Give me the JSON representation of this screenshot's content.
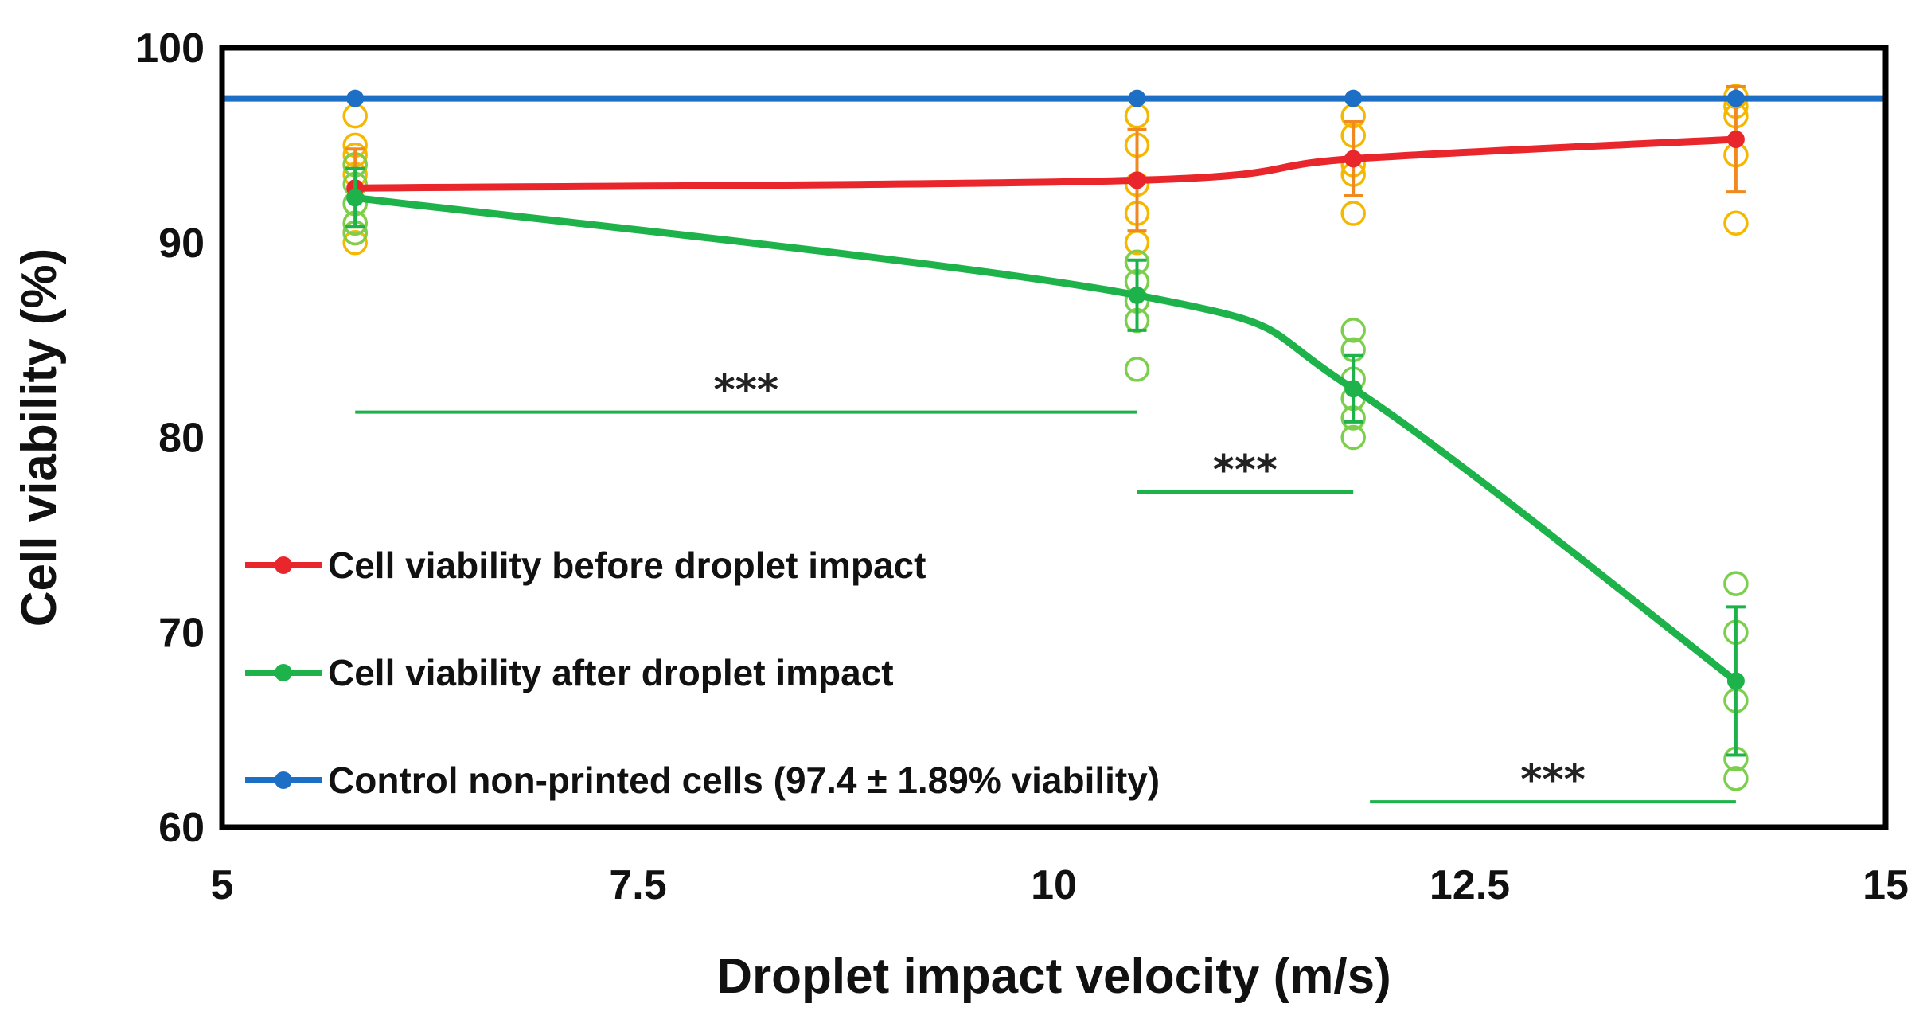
{
  "chart_data": {
    "type": "line",
    "title": "",
    "xlabel": "Droplet impact velocity (m/s)",
    "ylabel": "Cell viability (%)",
    "xlim": [
      5,
      15
    ],
    "ylim": [
      60,
      100
    ],
    "xticks": [
      5,
      7.5,
      10,
      12.5,
      15
    ],
    "xtick_labels": [
      "5",
      "7.5",
      "10",
      "12.5",
      "15"
    ],
    "yticks": [
      60,
      70,
      80,
      90,
      100
    ],
    "ytick_labels": [
      "60",
      "70",
      "80",
      "90",
      "100"
    ],
    "grid": false,
    "legend_position": "lower-left",
    "series": [
      {
        "name": "Cell viability before droplet impact",
        "color": "#e8262b",
        "marker_color": "#e8262b",
        "points_color": "#f5b800",
        "errbar_color": "#f08a20",
        "x": [
          5.8,
          10.5,
          11.8,
          14.1
        ],
        "y": [
          92.8,
          93.2,
          94.3,
          95.3
        ],
        "err": [
          2.0,
          2.6,
          1.9,
          2.7
        ],
        "samples": [
          [
            96.5,
            95.0,
            94.5,
            94.0,
            93.5,
            92.0,
            91.0,
            90.5,
            90.0
          ],
          [
            96.5,
            95.0,
            93.0,
            91.5,
            90.0
          ],
          [
            96.5,
            95.5,
            94.0,
            93.5,
            91.5
          ],
          [
            97.5,
            97.0,
            96.5,
            94.5,
            91.0
          ]
        ]
      },
      {
        "name": "Cell viability after droplet impact",
        "color": "#1db34a",
        "marker_color": "#1db34a",
        "points_color": "#7ccf4c",
        "errbar_color": "#1db34a",
        "x": [
          5.8,
          10.5,
          11.8,
          14.1
        ],
        "y": [
          92.3,
          87.3,
          82.5,
          67.5
        ],
        "err": [
          1.5,
          1.8,
          1.7,
          3.8
        ],
        "samples": [
          [
            94.0,
            93.0,
            92.0,
            91.0,
            90.5
          ],
          [
            89.0,
            88.0,
            87.0,
            86.0,
            83.5
          ],
          [
            85.5,
            84.5,
            83.0,
            82.0,
            81.0,
            80.0
          ],
          [
            72.5,
            70.0,
            66.5,
            63.5,
            62.5
          ]
        ]
      },
      {
        "name": "Control non-printed cells (97.4 ± 1.89% viability)",
        "color": "#1c6fc4",
        "marker_color": "#1c6fc4",
        "x": [
          5.8,
          10.5,
          11.8,
          14.1
        ],
        "y": [
          97.4,
          97.4,
          97.4,
          97.4
        ],
        "line_extends_full_width": true
      }
    ],
    "annotations": [
      {
        "label": "***",
        "x1": 5.8,
        "x2": 10.5,
        "y": 81.3,
        "color": "#1db34a"
      },
      {
        "label": "***",
        "x1": 10.5,
        "x2": 11.8,
        "y": 77.2,
        "color": "#1db34a"
      },
      {
        "label": "***",
        "x1": 11.9,
        "x2": 14.1,
        "y": 61.3,
        "color": "#1db34a"
      }
    ]
  }
}
